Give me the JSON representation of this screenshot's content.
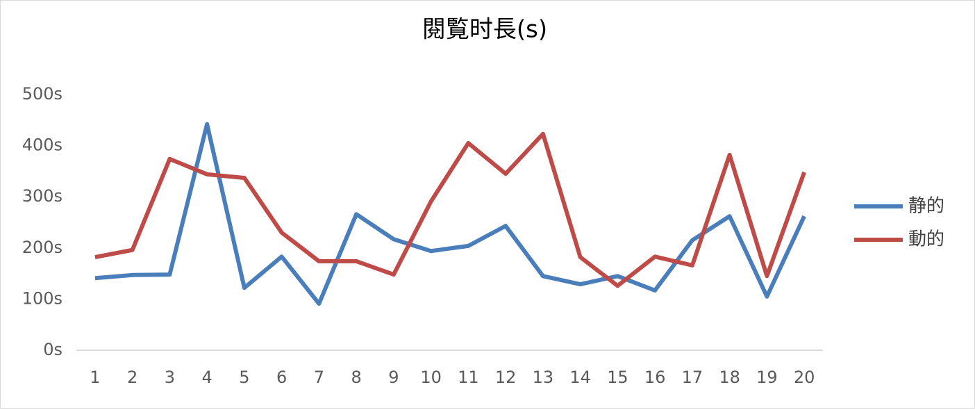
{
  "chart_data": {
    "type": "line",
    "title": "閱覧时長(s)",
    "categories": [
      "1",
      "2",
      "3",
      "4",
      "5",
      "6",
      "7",
      "8",
      "9",
      "10",
      "11",
      "12",
      "13",
      "14",
      "15",
      "16",
      "17",
      "18",
      "19",
      "20"
    ],
    "series": [
      {
        "name": "静的",
        "color": "#4a7ebb",
        "values": [
          141,
          147,
          148,
          442,
          122,
          183,
          91,
          266,
          217,
          194,
          204,
          243,
          145,
          129,
          145,
          117,
          215,
          262,
          105,
          262
        ]
      },
      {
        "name": "動的",
        "color": "#be4b48",
        "values": [
          182,
          196,
          374,
          344,
          337,
          230,
          174,
          174,
          148,
          291,
          405,
          345,
          423,
          182,
          126,
          183,
          166,
          382,
          145,
          348
        ]
      }
    ],
    "ylim": [
      0,
      500
    ],
    "yticks": [
      {
        "value": 0,
        "label": "0s"
      },
      {
        "value": 100,
        "label": "100s"
      },
      {
        "value": 200,
        "label": "200s"
      },
      {
        "value": 300,
        "label": "300s"
      },
      {
        "value": 400,
        "label": "400s"
      },
      {
        "value": 500,
        "label": "500s"
      }
    ],
    "grid": false,
    "legend": "right"
  }
}
